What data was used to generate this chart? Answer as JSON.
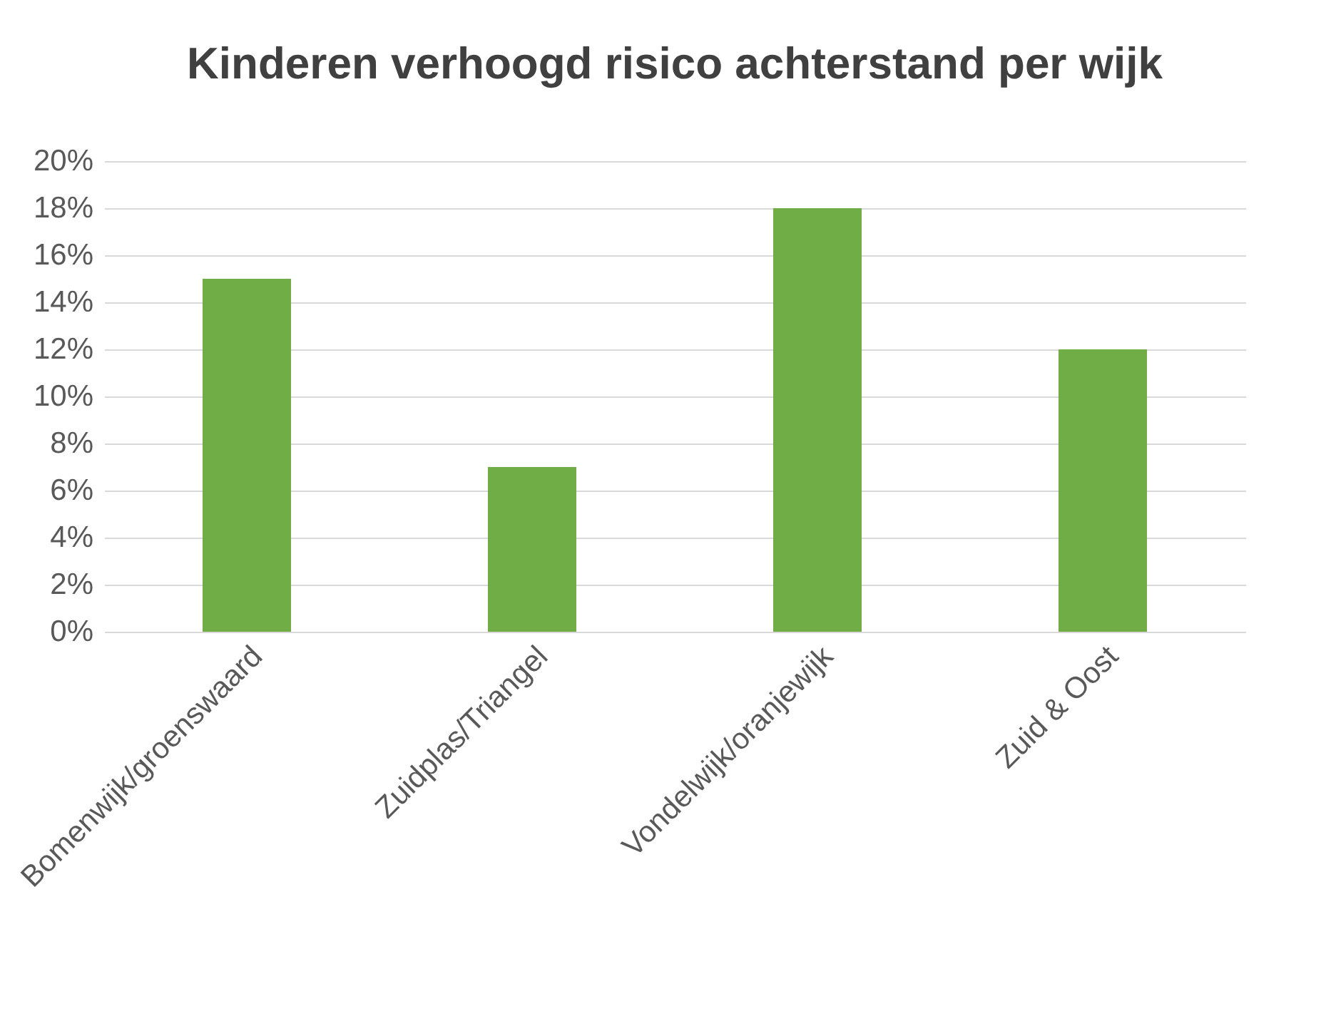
{
  "chart_data": {
    "type": "bar",
    "title": "Kinderen verhoogd risico achterstand per wijk",
    "categories": [
      "Bomenwijk/groenswaard",
      "Zuidplas/Triangel",
      "Vondelwijk/oranjewijk",
      "Zuid & Oost"
    ],
    "values": [
      15,
      7,
      18,
      12
    ],
    "color": "#70ad47",
    "ylim": [
      0,
      20
    ],
    "yticks": [
      {
        "value": 0,
        "label": "0%"
      },
      {
        "value": 2,
        "label": "2%"
      },
      {
        "value": 4,
        "label": "4%"
      },
      {
        "value": 6,
        "label": "6%"
      },
      {
        "value": 8,
        "label": "8%"
      },
      {
        "value": 10,
        "label": "10%"
      },
      {
        "value": 12,
        "label": "12%"
      },
      {
        "value": 14,
        "label": "14%"
      },
      {
        "value": 16,
        "label": "16%"
      },
      {
        "value": 18,
        "label": "18%"
      },
      {
        "value": 20,
        "label": "20%"
      }
    ],
    "grid": "y"
  }
}
